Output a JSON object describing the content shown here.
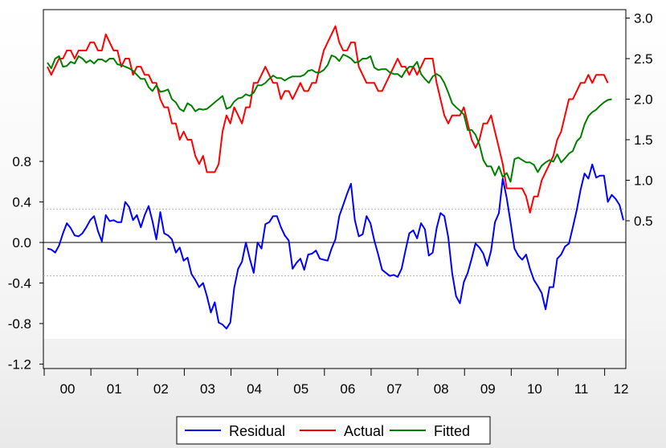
{
  "chart_data": {
    "type": "line",
    "title": "",
    "x_tick_labels": [
      "00",
      "01",
      "02",
      "03",
      "04",
      "05",
      "06",
      "07",
      "08",
      "09",
      "10",
      "11",
      "12"
    ],
    "left_axis": {
      "ylim": [
        -1.2,
        1.0
      ],
      "ticks": [
        -1.2,
        -0.8,
        -0.4,
        0.0,
        0.4,
        0.8
      ],
      "tick_labels": [
        "-1.2",
        "-0.8",
        "-0.4",
        "0.0",
        "0.4",
        "0.8"
      ],
      "reference_lines": [
        0.0
      ],
      "band_lines": [
        0.33,
        -0.33
      ]
    },
    "right_axis": {
      "ylim": [
        -1.0,
        3.0
      ],
      "ticks": [
        0.5,
        1.0,
        1.5,
        2.0,
        2.5,
        3.0
      ],
      "tick_labels": [
        "0.5",
        "1.0",
        "1.5",
        "2.0",
        "2.5",
        "3.0"
      ]
    },
    "x_start": 2000.0,
    "x_step": 0.0833,
    "grid": false,
    "legend_position": "bottom-center",
    "series": [
      {
        "name": "Residual",
        "axis": "left",
        "color": "#0000ff",
        "values": [
          -0.06,
          -0.07,
          -0.1,
          -0.03,
          0.09,
          0.19,
          0.14,
          0.07,
          0.06,
          0.09,
          0.15,
          0.22,
          0.26,
          0.11,
          0.01,
          0.27,
          0.21,
          0.22,
          0.2,
          0.2,
          0.4,
          0.35,
          0.22,
          0.27,
          0.15,
          0.27,
          0.36,
          0.21,
          0.03,
          0.3,
          0.09,
          0.07,
          0.03,
          -0.1,
          -0.05,
          -0.18,
          -0.15,
          -0.31,
          -0.37,
          -0.44,
          -0.4,
          -0.53,
          -0.69,
          -0.59,
          -0.79,
          -0.81,
          -0.85,
          -0.79,
          -0.45,
          -0.26,
          -0.19,
          0.0,
          -0.16,
          -0.3,
          0.0,
          -0.06,
          0.18,
          0.2,
          0.26,
          0.26,
          0.15,
          0.07,
          0.02,
          -0.26,
          -0.2,
          -0.16,
          -0.27,
          -0.12,
          -0.11,
          -0.08,
          -0.16,
          -0.17,
          -0.18,
          -0.06,
          0.03,
          0.26,
          0.37,
          0.48,
          0.58,
          0.22,
          0.06,
          0.08,
          0.26,
          0.19,
          0.02,
          -0.12,
          -0.27,
          -0.3,
          -0.33,
          -0.32,
          -0.34,
          -0.26,
          -0.08,
          0.09,
          0.12,
          0.04,
          0.19,
          0.13,
          -0.13,
          -0.1,
          0.14,
          0.29,
          0.26,
          0.05,
          -0.3,
          -0.53,
          -0.6,
          -0.39,
          -0.3,
          -0.16,
          -0.01,
          -0.05,
          -0.11,
          -0.23,
          -0.08,
          0.2,
          0.29,
          0.63,
          0.44,
          0.2,
          -0.06,
          -0.13,
          -0.17,
          -0.12,
          -0.26,
          -0.37,
          -0.43,
          -0.5,
          -0.66,
          -0.44,
          -0.44,
          -0.16,
          -0.12,
          -0.04,
          -0.01,
          0.15,
          0.32,
          0.52,
          0.68,
          0.63,
          0.77,
          0.64,
          0.66,
          0.66,
          0.4,
          0.47,
          0.43,
          0.37,
          0.22
        ]
      },
      {
        "name": "Actual",
        "axis": "right",
        "color": "#ff0000",
        "values": [
          2.4,
          2.3,
          2.4,
          2.5,
          2.5,
          2.6,
          2.6,
          2.5,
          2.6,
          2.6,
          2.6,
          2.7,
          2.7,
          2.6,
          2.6,
          2.8,
          2.7,
          2.6,
          2.6,
          2.4,
          2.5,
          2.5,
          2.3,
          2.4,
          2.4,
          2.3,
          2.3,
          2.2,
          2.2,
          2.0,
          1.9,
          1.9,
          1.7,
          1.7,
          1.5,
          1.6,
          1.5,
          1.5,
          1.3,
          1.2,
          1.3,
          1.1,
          1.1,
          1.1,
          1.2,
          1.6,
          1.8,
          1.7,
          1.9,
          1.8,
          1.7,
          1.9,
          1.9,
          2.2,
          2.2,
          2.3,
          2.4,
          2.3,
          2.2,
          2.2,
          2.0,
          2.1,
          2.1,
          2.0,
          2.1,
          2.2,
          2.1,
          2.1,
          2.2,
          2.2,
          2.4,
          2.6,
          2.7,
          2.8,
          2.9,
          2.7,
          2.6,
          2.6,
          2.7,
          2.7,
          2.4,
          2.3,
          2.2,
          2.2,
          2.2,
          2.1,
          2.1,
          2.2,
          2.3,
          2.4,
          2.5,
          2.4,
          2.4,
          2.3,
          2.4,
          2.3,
          2.4,
          2.5,
          2.5,
          2.5,
          2.2,
          2.0,
          1.8,
          1.7,
          1.8,
          1.8,
          1.8,
          1.9,
          1.7,
          1.5,
          1.4,
          1.5,
          1.7,
          1.7,
          1.8,
          1.6,
          1.4,
          1.2,
          0.9,
          0.9,
          0.9,
          0.9,
          0.9,
          0.8,
          0.6,
          0.8,
          0.8,
          1.0,
          1.1,
          1.2,
          1.3,
          1.5,
          1.6,
          1.8,
          2.0,
          2.0,
          2.1,
          2.2,
          2.2,
          2.3,
          2.2,
          2.3,
          2.3,
          2.3,
          2.2
        ]
      },
      {
        "name": "Fitted",
        "axis": "right",
        "color": "#008000",
        "values": [
          2.45,
          2.38,
          2.5,
          2.53,
          2.4,
          2.41,
          2.46,
          2.44,
          2.53,
          2.5,
          2.45,
          2.48,
          2.44,
          2.49,
          2.49,
          2.46,
          2.5,
          2.5,
          2.43,
          2.42,
          2.4,
          2.38,
          2.35,
          2.3,
          2.25,
          2.25,
          2.15,
          2.1,
          2.17,
          2.09,
          2.1,
          2.12,
          2.0,
          1.96,
          1.88,
          1.85,
          1.95,
          1.92,
          1.85,
          1.88,
          1.87,
          1.88,
          1.92,
          1.96,
          2.0,
          2.04,
          1.88,
          1.9,
          1.97,
          2.01,
          2.02,
          2.06,
          2.04,
          2.08,
          2.17,
          2.17,
          2.2,
          2.25,
          2.29,
          2.26,
          2.26,
          2.23,
          2.26,
          2.28,
          2.28,
          2.28,
          2.3,
          2.35,
          2.36,
          2.33,
          2.33,
          2.36,
          2.42,
          2.54,
          2.52,
          2.47,
          2.55,
          2.53,
          2.5,
          2.45,
          2.46,
          2.5,
          2.5,
          2.53,
          2.39,
          2.36,
          2.37,
          2.37,
          2.33,
          2.31,
          2.31,
          2.27,
          2.35,
          2.4,
          2.4,
          2.46,
          2.31,
          2.25,
          2.2,
          2.28,
          2.31,
          2.28,
          2.2,
          2.08,
          1.95,
          1.9,
          1.86,
          1.81,
          1.62,
          1.62,
          1.56,
          1.44,
          1.25,
          1.17,
          1.17,
          1.06,
          1.17,
          1.04,
          1.09,
          0.98,
          1.26,
          1.28,
          1.25,
          1.22,
          1.22,
          1.19,
          1.1,
          1.18,
          1.22,
          1.25,
          1.23,
          1.32,
          1.22,
          1.27,
          1.33,
          1.36,
          1.48,
          1.53,
          1.69,
          1.79,
          1.84,
          1.87,
          1.92,
          1.96,
          1.99,
          2.0
        ]
      }
    ]
  }
}
